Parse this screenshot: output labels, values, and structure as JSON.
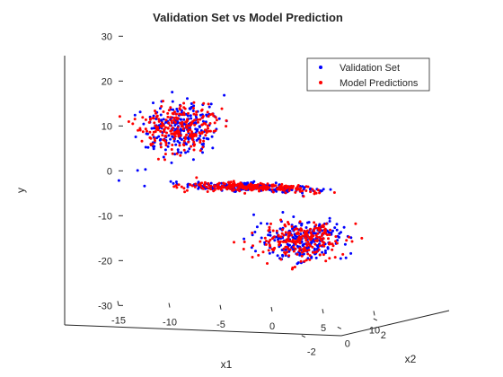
{
  "chart_data": {
    "type": "scatter",
    "title": "Validation Set vs Model Prediction",
    "xlabel": "x1",
    "ylabel": "y",
    "zlabel": "x2",
    "x1_ticks": [
      -15,
      -10,
      -5,
      0,
      5,
      10
    ],
    "x2_ticks": [
      -2,
      0,
      2
    ],
    "y_ticks": [
      -30,
      -20,
      -10,
      0,
      10,
      20,
      30
    ],
    "x1_range": [
      -15,
      12
    ],
    "x2_range": [
      -3,
      3
    ],
    "y_range": [
      -30,
      30
    ],
    "legend_position": "top-right",
    "series": [
      {
        "name": "Validation Set",
        "color": "#0000ff"
      },
      {
        "name": "Model Predictions",
        "color": "#ff0000"
      }
    ],
    "clusters": [
      {
        "label": "upper-left",
        "x1_center": -6,
        "x1_spread": 3,
        "x2_center": 1.2,
        "x2_spread": 1.0,
        "y_center": 12,
        "y_spread": 5,
        "count_per_series": 230
      },
      {
        "label": "middle",
        "x1_center": 4,
        "x1_spread": 6,
        "x2_center": -0.5,
        "x2_spread": 0.6,
        "y_center": 1.3,
        "y_spread": 0.6,
        "count_per_series": 230
      },
      {
        "label": "lower-right",
        "x1_center": 9,
        "x1_spread": 3,
        "x2_center": -0.5,
        "x2_spread": 1.2,
        "y_center": -10,
        "y_spread": 4,
        "count_per_series": 230
      }
    ]
  }
}
